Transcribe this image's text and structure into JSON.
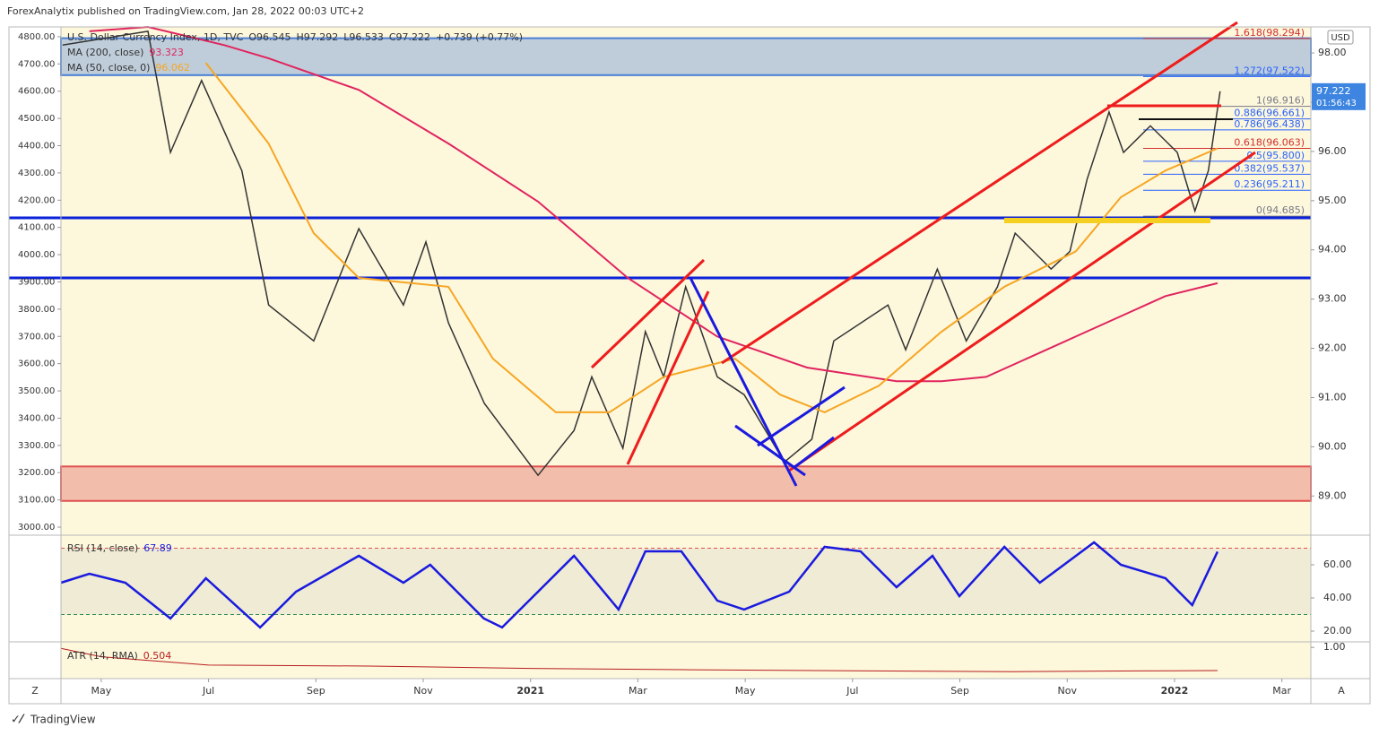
{
  "header": "ForexAnalytix published on TradingView.com, Jan 28, 2022 00:03 UTC+2",
  "footer": "TradingView",
  "chart_data": {
    "type": "line",
    "legend": {
      "symbol": "U.S. Dollar Currency Index, 1D, TVC",
      "open": "O96.545",
      "high": "H97.292",
      "low": "L96.533",
      "close": "C97.222",
      "change": "+0.739 (+0.77%)"
    },
    "currency": "USD",
    "countdown": "01:56:43",
    "scale_buttons": [
      "Z",
      "A"
    ],
    "xlim": [
      3.25,
      26.54
    ],
    "xticks": [
      {
        "value": 4,
        "label": "May"
      },
      {
        "value": 6,
        "label": "Jul"
      },
      {
        "value": 8,
        "label": "Sep"
      },
      {
        "value": 10,
        "label": "Nov"
      },
      {
        "value": 12,
        "label": "2021"
      },
      {
        "value": 14,
        "label": "Mar"
      },
      {
        "value": 16,
        "label": "May"
      },
      {
        "value": 18,
        "label": "Jul"
      },
      {
        "value": 20,
        "label": "Sep"
      },
      {
        "value": 22,
        "label": "Nov"
      },
      {
        "value": 24,
        "label": "2022"
      },
      {
        "value": 26,
        "label": "Mar"
      }
    ],
    "ylim": [
      88.24,
      98.53
    ],
    "yticks": [
      {
        "value": 89,
        "label": "89.00"
      },
      {
        "value": 90,
        "label": "90.00"
      },
      {
        "value": 91,
        "label": "91.00"
      },
      {
        "value": 92,
        "label": "92.00"
      },
      {
        "value": 93,
        "label": "93.00"
      },
      {
        "value": 94,
        "label": "94.00"
      },
      {
        "value": 95,
        "label": "95.00"
      },
      {
        "value": 96,
        "label": "96.00"
      },
      {
        "value": 97,
        "label": "97.00"
      },
      {
        "value": 98,
        "label": "98.00"
      }
    ],
    "y2lim": [
      2977,
      4836
    ],
    "y2ticks": [
      {
        "value": 3000,
        "label": "3000.00"
      },
      {
        "value": 3100,
        "label": "3100.00"
      },
      {
        "value": 3200,
        "label": "3200.00"
      },
      {
        "value": 3300,
        "label": "3300.00"
      },
      {
        "value": 3400,
        "label": "3400.00"
      },
      {
        "value": 3500,
        "label": "3500.00"
      },
      {
        "value": 3600,
        "label": "3600.00"
      },
      {
        "value": 3700,
        "label": "3700.00"
      },
      {
        "value": 3800,
        "label": "3800.00"
      },
      {
        "value": 3900,
        "label": "3900.00"
      },
      {
        "value": 4000,
        "label": "4000.00"
      },
      {
        "value": 4100,
        "label": "4100.00"
      },
      {
        "value": 4200,
        "label": "4200.00"
      },
      {
        "value": 4300,
        "label": "4300.00"
      },
      {
        "value": 4400,
        "label": "4400.00"
      },
      {
        "value": 4500,
        "label": "4500.00"
      },
      {
        "value": 4600,
        "label": "4600.00"
      },
      {
        "value": 4700,
        "label": "4700.00"
      },
      {
        "value": 4800,
        "label": "4800.00"
      }
    ],
    "series": [
      {
        "name": "U.S. Dollar Currency Index, 1D, TVC",
        "color": "#333333",
        "x": [
          3.28,
          4.87,
          5.29,
          5.87,
          6.62,
          7.12,
          7.96,
          8.8,
          9.63,
          10.05,
          10.47,
          11.14,
          12.14,
          12.81,
          13.14,
          13.72,
          14.14,
          14.48,
          14.89,
          15.48,
          15.98,
          16.73,
          17.24,
          17.65,
          18.66,
          18.99,
          19.58,
          20.12,
          20.7,
          21.03,
          21.7,
          22.05,
          22.37,
          22.78,
          23.05,
          23.55,
          24.05,
          24.38,
          24.63,
          24.85
        ],
        "values": [
          98.16,
          98.44,
          95.98,
          97.44,
          95.61,
          92.88,
          92.15,
          94.43,
          92.88,
          94.16,
          92.52,
          90.88,
          89.42,
          90.33,
          91.42,
          89.97,
          92.34,
          91.42,
          93.25,
          91.42,
          91.06,
          89.69,
          90.15,
          92.15,
          92.88,
          91.97,
          93.61,
          92.15,
          93.25,
          94.34,
          93.61,
          93.97,
          95.43,
          96.8,
          95.98,
          96.52,
          95.98,
          94.79,
          95.61,
          97.222
        ],
        "value_labels": [
          null,
          null,
          null,
          null,
          null,
          null,
          null,
          null,
          null,
          null,
          null,
          null,
          null,
          null,
          null,
          null,
          null,
          null,
          null,
          null,
          null,
          null,
          null,
          null,
          null,
          null,
          null,
          null,
          null,
          null,
          null,
          null,
          null,
          null,
          null,
          null,
          null,
          null,
          null,
          "97.222"
        ]
      },
      {
        "name": "MA (200, close)",
        "color": "#e0245e",
        "x": [
          3.78,
          4.87,
          6.29,
          7.12,
          8.8,
          10.47,
          12.14,
          13.81,
          15.48,
          17.15,
          18.82,
          19.66,
          20.49,
          22.16,
          23.83,
          24.8
        ],
        "values": [
          98.44,
          98.53,
          98.16,
          97.89,
          97.25,
          96.16,
          94.98,
          93.43,
          92.24,
          91.61,
          91.33,
          91.33,
          91.42,
          92.24,
          93.06,
          93.323
        ],
        "last_label": "93.323"
      },
      {
        "name": "MA (50, close, 0)",
        "color": "#f5a623",
        "x": [
          5.95,
          7.12,
          7.96,
          8.8,
          10.47,
          11.3,
          12.47,
          13.47,
          14.48,
          15.81,
          16.65,
          17.48,
          18.49,
          19.66,
          20.83,
          22.16,
          23.0,
          23.83,
          24.8
        ],
        "values": [
          97.8,
          96.16,
          94.34,
          93.43,
          93.25,
          91.79,
          90.7,
          90.7,
          91.42,
          91.79,
          91.06,
          90.7,
          91.24,
          92.34,
          93.25,
          93.97,
          95.07,
          95.61,
          96.062
        ],
        "last_label": "96.062"
      }
    ],
    "zones": [
      {
        "from": 97.55,
        "to": 98.3,
        "color": "#4a7fd6"
      },
      {
        "from": 88.9,
        "to": 89.6,
        "color": "#e05050"
      }
    ],
    "levels": [
      {
        "value": 94.65,
        "color": "#0a22d8"
      },
      {
        "value": 93.43,
        "color": "#0a22d8"
      }
    ],
    "fib": [
      {
        "value": 98.294,
        "label": "1.618(98.294)",
        "color": "#d32f2f"
      },
      {
        "value": 97.522,
        "label": "1.272(97.522)",
        "color": "#2962ff"
      },
      {
        "value": 96.916,
        "label": "1(96.916)",
        "color": "#787b86"
      },
      {
        "value": 96.661,
        "label": "0.886(96.661)",
        "color": "#2962ff"
      },
      {
        "value": 96.438,
        "label": "0.786(96.438)",
        "color": "#2962ff"
      },
      {
        "value": 96.063,
        "label": "0.618(96.063)",
        "color": "#d32f2f"
      },
      {
        "value": 95.8,
        "label": "0.5(95.800)",
        "color": "#2962ff"
      },
      {
        "value": 95.537,
        "label": "0.382(95.537)",
        "color": "#2962ff"
      },
      {
        "value": 95.211,
        "label": "0.236(95.211)",
        "color": "#2962ff"
      },
      {
        "value": 94.685,
        "label": "0(94.685)",
        "color": "#787b86"
      }
    ],
    "rsi": {
      "name": "RSI (14, close)",
      "color": "#1a1adf",
      "last_label": "67.89",
      "ylim": [
        14.05,
        77.3
      ],
      "yticks": [
        {
          "value": 20,
          "label": "20.00"
        },
        {
          "value": 40,
          "label": "40.00"
        },
        {
          "value": 60,
          "label": "60.00"
        }
      ],
      "bands": [
        70,
        30
      ],
      "x": [
        3.25,
        3.78,
        4.45,
        5.29,
        5.95,
        6.96,
        7.63,
        8.8,
        9.63,
        10.13,
        11.13,
        11.47,
        12.14,
        12.81,
        13.64,
        14.14,
        14.81,
        15.48,
        15.98,
        16.82,
        17.48,
        18.15,
        18.82,
        19.49,
        19.99,
        20.83,
        21.49,
        22.5,
        23.0,
        23.83,
        24.33,
        24.8
      ],
      "values": [
        49.2,
        54.6,
        49.2,
        27.6,
        51.9,
        22.2,
        43.8,
        65.4,
        49.2,
        60,
        27.6,
        22.2,
        43.8,
        65.4,
        33,
        68.1,
        68.1,
        38.4,
        33,
        43.8,
        70.8,
        68.1,
        46.5,
        65.4,
        41.1,
        70.8,
        49.2,
        73.5,
        60,
        51.9,
        35.7,
        67.89
      ]
    },
    "atr": {
      "name": "ATR (14, RMA)",
      "color": "#b71c1c",
      "last_label": "0.504",
      "ylim": [
        0.33,
        1.1
      ],
      "yticks": [
        {
          "value": 1,
          "label": "1.00"
        }
      ],
      "x": [
        3.25,
        4,
        6,
        9,
        12,
        15,
        18,
        21,
        24,
        24.8
      ],
      "values": [
        0.98,
        0.8,
        0.62,
        0.6,
        0.55,
        0.52,
        0.5,
        0.48,
        0.5,
        0.504
      ]
    }
  }
}
